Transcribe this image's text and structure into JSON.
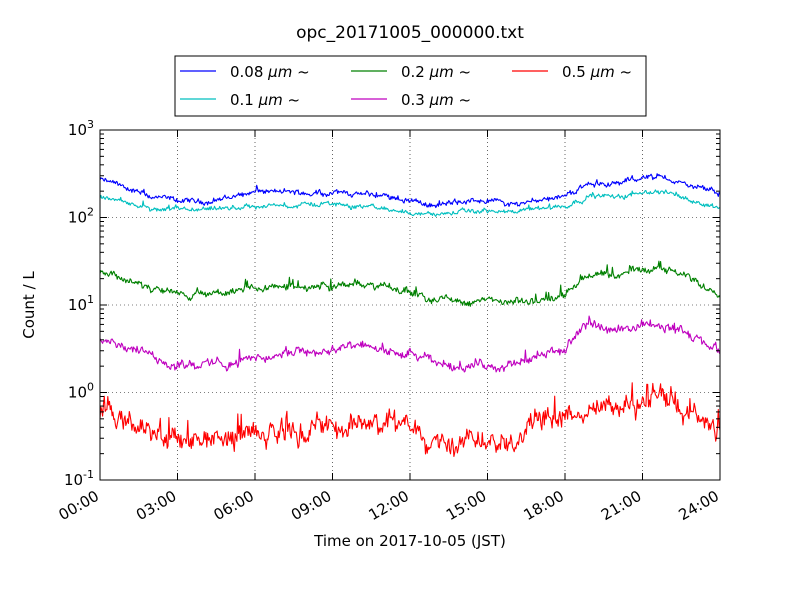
{
  "chart_data": {
    "type": "line",
    "title": "opc_20171005_000000.txt",
    "xlabel": "Time on 2017-10-05 (JST)",
    "ylabel": "Count / L",
    "yscale": "log",
    "ylim_exponents": [
      -1,
      3
    ],
    "y_tick_base": "10",
    "y_tick_exponents": [
      "-1",
      "0",
      "1",
      "2",
      "3"
    ],
    "xlim_hours": [
      0,
      24
    ],
    "x_ticks": [
      {
        "hour": 0,
        "label": "00:00"
      },
      {
        "hour": 3,
        "label": "03:00"
      },
      {
        "hour": 6,
        "label": "06:00"
      },
      {
        "hour": 9,
        "label": "09:00"
      },
      {
        "hour": 12,
        "label": "12:00"
      },
      {
        "hour": 15,
        "label": "15:00"
      },
      {
        "hour": 18,
        "label": "18:00"
      },
      {
        "hour": 21,
        "label": "21:00"
      },
      {
        "hour": 24,
        "label": "24:00"
      }
    ],
    "grid": true,
    "legend_position": "top-center",
    "x_hours": [
      0,
      1,
      2,
      3,
      4,
      5,
      6,
      7,
      8,
      9,
      10,
      11,
      12,
      13,
      14,
      15,
      16,
      17,
      18,
      19,
      20,
      21,
      22,
      23,
      24
    ],
    "series": [
      {
        "prefix": "0.08 ",
        "unit": "μm",
        "suffix": " ~",
        "color": "#0000ff",
        "noise": 0.03,
        "jitter": 0.2,
        "values": [
          270,
          220,
          170,
          155,
          150,
          170,
          200,
          195,
          190,
          195,
          185,
          175,
          160,
          135,
          150,
          160,
          140,
          165,
          175,
          250,
          240,
          290,
          280,
          220,
          190
        ]
      },
      {
        "prefix": "0.1 ",
        "unit": "μm",
        "suffix": " ~",
        "color": "#00bfbf",
        "noise": 0.025,
        "jitter": 0.15,
        "values": [
          170,
          150,
          120,
          120,
          120,
          125,
          135,
          135,
          140,
          145,
          135,
          125,
          115,
          108,
          115,
          120,
          112,
          128,
          135,
          180,
          170,
          200,
          195,
          155,
          130
        ]
      },
      {
        "prefix": "0.2 ",
        "unit": "μm",
        "suffix": " ~",
        "color": "#008000",
        "noise": 0.04,
        "jitter": 0.3,
        "values": [
          25,
          20,
          15,
          13,
          13,
          14,
          15,
          16,
          16,
          17,
          17,
          16,
          14,
          12,
          11,
          11,
          10.5,
          11,
          13,
          24,
          20,
          27,
          26,
          19,
          14
        ]
      },
      {
        "prefix": "0.3 ",
        "unit": "μm",
        "suffix": " ~",
        "color": "#bf00bf",
        "noise": 0.05,
        "jitter": 0.35,
        "values": [
          4.2,
          3.5,
          2.5,
          2.1,
          2.1,
          2.2,
          2.4,
          2.7,
          2.8,
          3.1,
          3.3,
          3.0,
          2.6,
          2.2,
          2.0,
          2.1,
          2.0,
          2.6,
          3.2,
          6.0,
          5.0,
          6.2,
          6.0,
          4.0,
          3.0
        ]
      },
      {
        "prefix": "0.5 ",
        "unit": "μm",
        "suffix": " ~",
        "color": "#ff0000",
        "noise": 0.12,
        "jitter": 0.8,
        "values": [
          0.55,
          0.45,
          0.32,
          0.3,
          0.28,
          0.3,
          0.33,
          0.35,
          0.38,
          0.42,
          0.45,
          0.42,
          0.38,
          0.32,
          0.3,
          0.33,
          0.32,
          0.42,
          0.5,
          0.65,
          0.6,
          0.85,
          0.8,
          0.5,
          0.35
        ]
      }
    ]
  }
}
